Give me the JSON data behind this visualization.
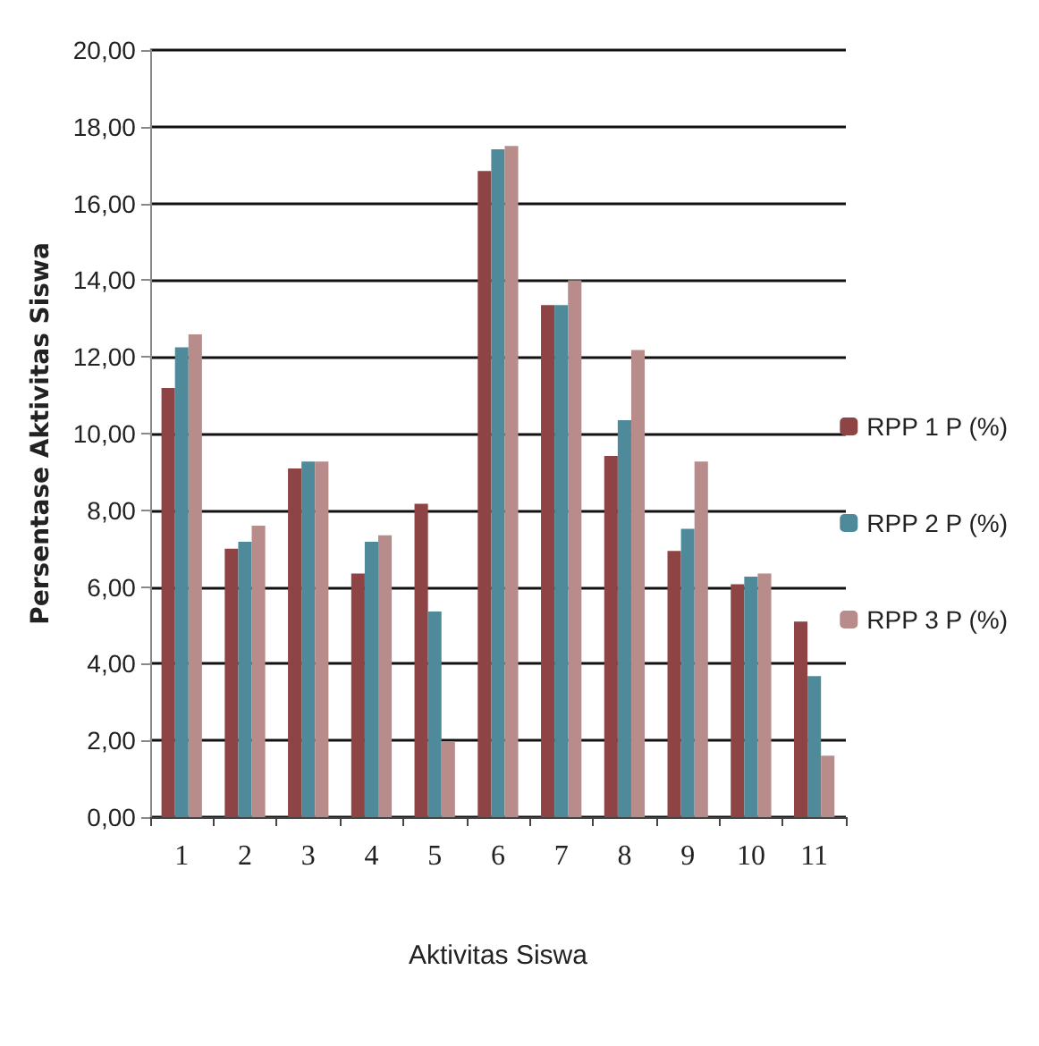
{
  "chart_data": {
    "type": "bar",
    "xlabel": "Aktivitas Siswa",
    "ylabel": "Persentase Aktivitas Siswa",
    "categories": [
      "1",
      "2",
      "3",
      "4",
      "5",
      "6",
      "7",
      "8",
      "9",
      "10",
      "11"
    ],
    "series": [
      {
        "name": "RPP 1 P (%)",
        "color": "#8e4444",
        "values": [
          11.19,
          7.0,
          9.09,
          6.35,
          8.17,
          16.85,
          13.35,
          9.42,
          6.94,
          6.07,
          5.1
        ]
      },
      {
        "name": "RPP 2 P (%)",
        "color": "#4f8a9a",
        "values": [
          12.25,
          7.18,
          9.27,
          7.18,
          5.36,
          17.41,
          13.35,
          10.35,
          7.52,
          6.27,
          3.68
        ]
      },
      {
        "name": "RPP 3 P (%)",
        "color": "#b98c8c",
        "values": [
          12.59,
          7.6,
          9.27,
          7.35,
          1.98,
          17.5,
          14.0,
          12.18,
          9.27,
          6.35,
          1.6
        ]
      }
    ],
    "ylim": [
      0,
      20
    ],
    "yticks": [
      {
        "value": 0,
        "label": "0,00"
      },
      {
        "value": 2,
        "label": "2,00"
      },
      {
        "value": 4,
        "label": "4,00"
      },
      {
        "value": 6,
        "label": "6,00"
      },
      {
        "value": 8,
        "label": "8,00"
      },
      {
        "value": 10,
        "label": "10,00"
      },
      {
        "value": 12,
        "label": "12,00"
      },
      {
        "value": 14,
        "label": "14,00"
      },
      {
        "value": 16,
        "label": "16,00"
      },
      {
        "value": 18,
        "label": "18,00"
      },
      {
        "value": 20,
        "label": "20,00"
      }
    ],
    "grid": "y",
    "legend": "right"
  }
}
